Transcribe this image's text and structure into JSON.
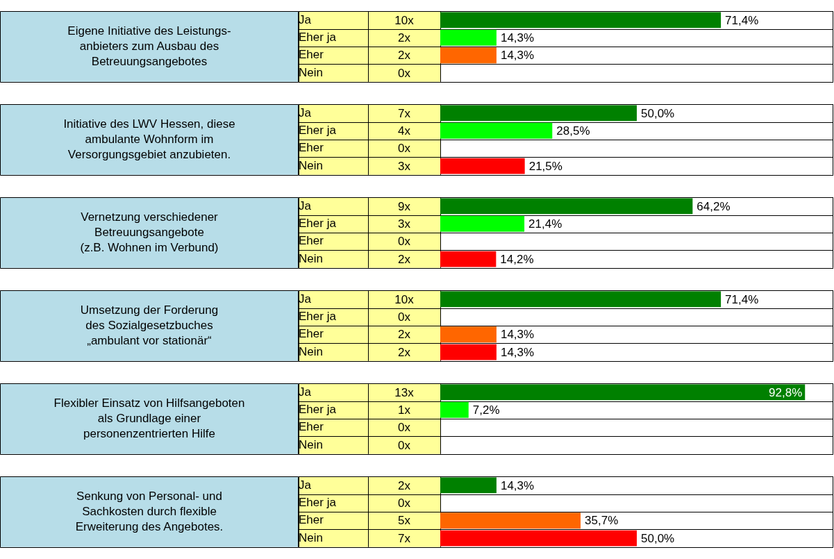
{
  "chart_data": [
    {
      "type": "bar",
      "orientation": "horizontal",
      "ylabel": "Eigene Initiative des Leistungs-\nanbieters zum Ausbau des\nBetreuungsangebotes",
      "categories": [
        "Ja",
        "Eher ja",
        "Eher",
        "Nein"
      ],
      "values": [
        71.4,
        14.3,
        14.3,
        0
      ],
      "colors": [
        "#008000",
        "#00ff00",
        "#ff6600",
        "#ff0000"
      ],
      "value_labels": [
        "71,4%",
        "14,3%",
        "14,3%",
        null
      ],
      "annotations": [
        "10x",
        "2x",
        "2x",
        "0x"
      ],
      "xlim": [
        0,
        100
      ],
      "tick_labels": "y"
    },
    {
      "type": "bar",
      "orientation": "horizontal",
      "ylabel": "Initiative des LWV Hessen, diese\nambulante Wohnform im\nVersorgungsgebiet anzubieten.",
      "categories": [
        "Ja",
        "Eher ja",
        "Eher",
        "Nein"
      ],
      "values": [
        50.0,
        28.5,
        0,
        21.5
      ],
      "colors": [
        "#008000",
        "#00ff00",
        "#ff6600",
        "#ff0000"
      ],
      "value_labels": [
        "50,0%",
        "28,5%",
        null,
        "21,5%"
      ],
      "annotations": [
        "7x",
        "4x",
        "0x",
        "3x"
      ],
      "xlim": [
        0,
        100
      ],
      "tick_labels": "y"
    },
    {
      "type": "bar",
      "orientation": "horizontal",
      "ylabel": "Vernetzung verschiedener\nBetreuungsangebote\n(z.B. Wohnen im Verbund)",
      "categories": [
        "Ja",
        "Eher ja",
        "Eher",
        "Nein"
      ],
      "values": [
        64.2,
        21.4,
        0,
        14.2
      ],
      "colors": [
        "#008000",
        "#00ff00",
        "#ff6600",
        "#ff0000"
      ],
      "value_labels": [
        "64,2%",
        "21,4%",
        null,
        "14,2%"
      ],
      "annotations": [
        "9x",
        "3x",
        "0x",
        "2x"
      ],
      "xlim": [
        0,
        100
      ],
      "tick_labels": "y"
    },
    {
      "type": "bar",
      "orientation": "horizontal",
      "ylabel": "Umsetzung der Forderung\ndes Sozialgesetzbuches\n„ambulant vor stationär“",
      "categories": [
        "Ja",
        "Eher ja",
        "Eher",
        "Nein"
      ],
      "values": [
        71.4,
        0,
        14.3,
        14.3
      ],
      "colors": [
        "#008000",
        "#00ff00",
        "#ff6600",
        "#ff0000"
      ],
      "value_labels": [
        "71,4%",
        null,
        "14,3%",
        "14,3%"
      ],
      "annotations": [
        "10x",
        "0x",
        "2x",
        "2x"
      ],
      "xlim": [
        0,
        100
      ],
      "tick_labels": "y"
    },
    {
      "type": "bar",
      "orientation": "horizontal",
      "ylabel": "Flexibler Einsatz von Hilfsangeboten\nals Grundlage einer\npersonenzentrierten Hilfe",
      "categories": [
        "Ja",
        "Eher ja",
        "Eher",
        "Nein"
      ],
      "values": [
        92.8,
        7.2,
        0,
        0
      ],
      "colors": [
        "#008000",
        "#00ff00",
        "#ff6600",
        "#ff0000"
      ],
      "value_labels": [
        "92,8%",
        "7,2%",
        null,
        null
      ],
      "annotations": [
        "13x",
        "1x",
        "0x",
        "0x"
      ],
      "xlim": [
        0,
        100
      ],
      "tick_labels": "y"
    },
    {
      "type": "bar",
      "orientation": "horizontal",
      "ylabel": "Senkung von Personal- und\nSachkosten durch flexible\nErweiterung des Angebotes.",
      "categories": [
        "Ja",
        "Eher ja",
        "Eher",
        "Nein"
      ],
      "values": [
        14.3,
        0,
        35.7,
        50.0
      ],
      "colors": [
        "#008000",
        "#00ff00",
        "#ff6600",
        "#ff0000"
      ],
      "value_labels": [
        "14,3%",
        null,
        "35,7%",
        "50,0%"
      ],
      "annotations": [
        "2x",
        "0x",
        "5x",
        "7x"
      ],
      "xlim": [
        0,
        100
      ],
      "tick_labels": "y"
    }
  ]
}
